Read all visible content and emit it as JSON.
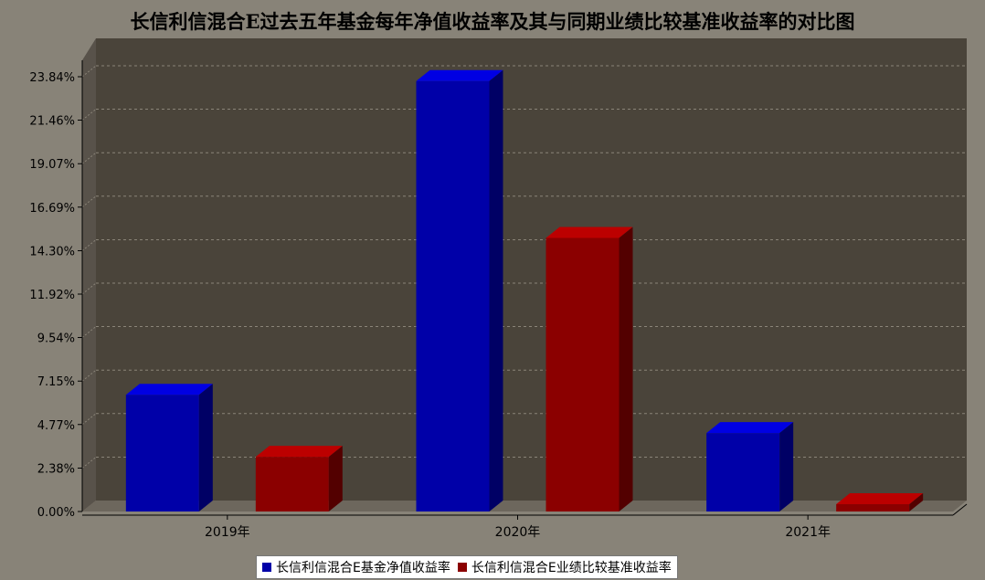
{
  "chart_data": {
    "type": "bar",
    "title": "长信利信混合E过去五年基金每年净值收益率及其与同期业绩比较基准收益率的对比图",
    "categories": [
      "2019年",
      "2020年",
      "2021年"
    ],
    "series": [
      {
        "name": "长信利信混合E基金净值收益率",
        "color": "#0000a8",
        "values": [
          6.4,
          23.6,
          4.3
        ]
      },
      {
        "name": "长信利信混合E业绩比较基准收益率",
        "color": "#8b0000",
        "values": [
          3.0,
          15.0,
          0.4
        ]
      }
    ],
    "yticks": [
      "0.00%",
      "2.38%",
      "4.77%",
      "7.15%",
      "9.54%",
      "11.92%",
      "14.30%",
      "16.69%",
      "19.07%",
      "21.46%",
      "23.84%"
    ],
    "ylim": [
      0,
      23.84
    ],
    "grid": true,
    "legend_position": "bottom"
  }
}
